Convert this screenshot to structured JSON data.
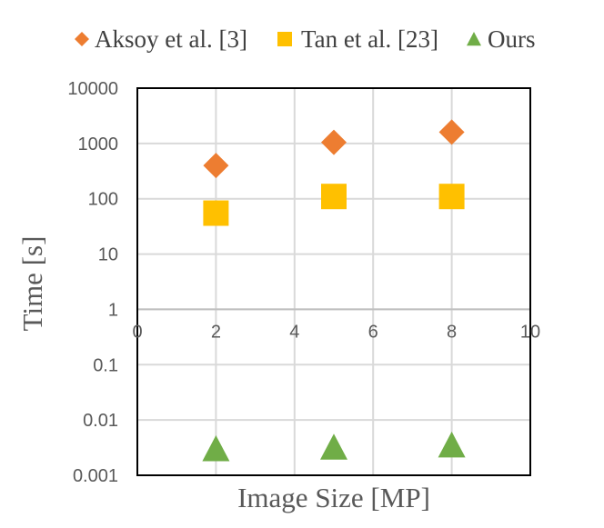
{
  "chart_data": {
    "type": "scatter",
    "title": "",
    "xlabel": "Image Size [MP]",
    "ylabel": "Time [s]",
    "x_scale": "linear",
    "y_scale": "log",
    "xlim": [
      0,
      10
    ],
    "ylim": [
      0.001,
      10000
    ],
    "x_ticks": [
      "0",
      "2",
      "4",
      "6",
      "8",
      "10"
    ],
    "y_ticks": [
      "10000",
      "1000",
      "100",
      "10",
      "1",
      "0.1",
      "0.01",
      "0.001"
    ],
    "grid": true,
    "legend_position": "top",
    "series": [
      {
        "name": "Aksoy et al. [3]",
        "marker": "diamond",
        "color": "#ED7D31",
        "x": [
          2,
          5,
          8
        ],
        "y": [
          400,
          1050,
          1600
        ]
      },
      {
        "name": "Tan et al. [23]",
        "marker": "square",
        "color": "#FFC000",
        "x": [
          2,
          5,
          8
        ],
        "y": [
          55,
          110,
          110
        ]
      },
      {
        "name": "Ours",
        "marker": "triangle",
        "color": "#70AD47",
        "x": [
          2,
          5,
          8
        ],
        "y": [
          0.003,
          0.0032,
          0.0035
        ]
      }
    ]
  }
}
